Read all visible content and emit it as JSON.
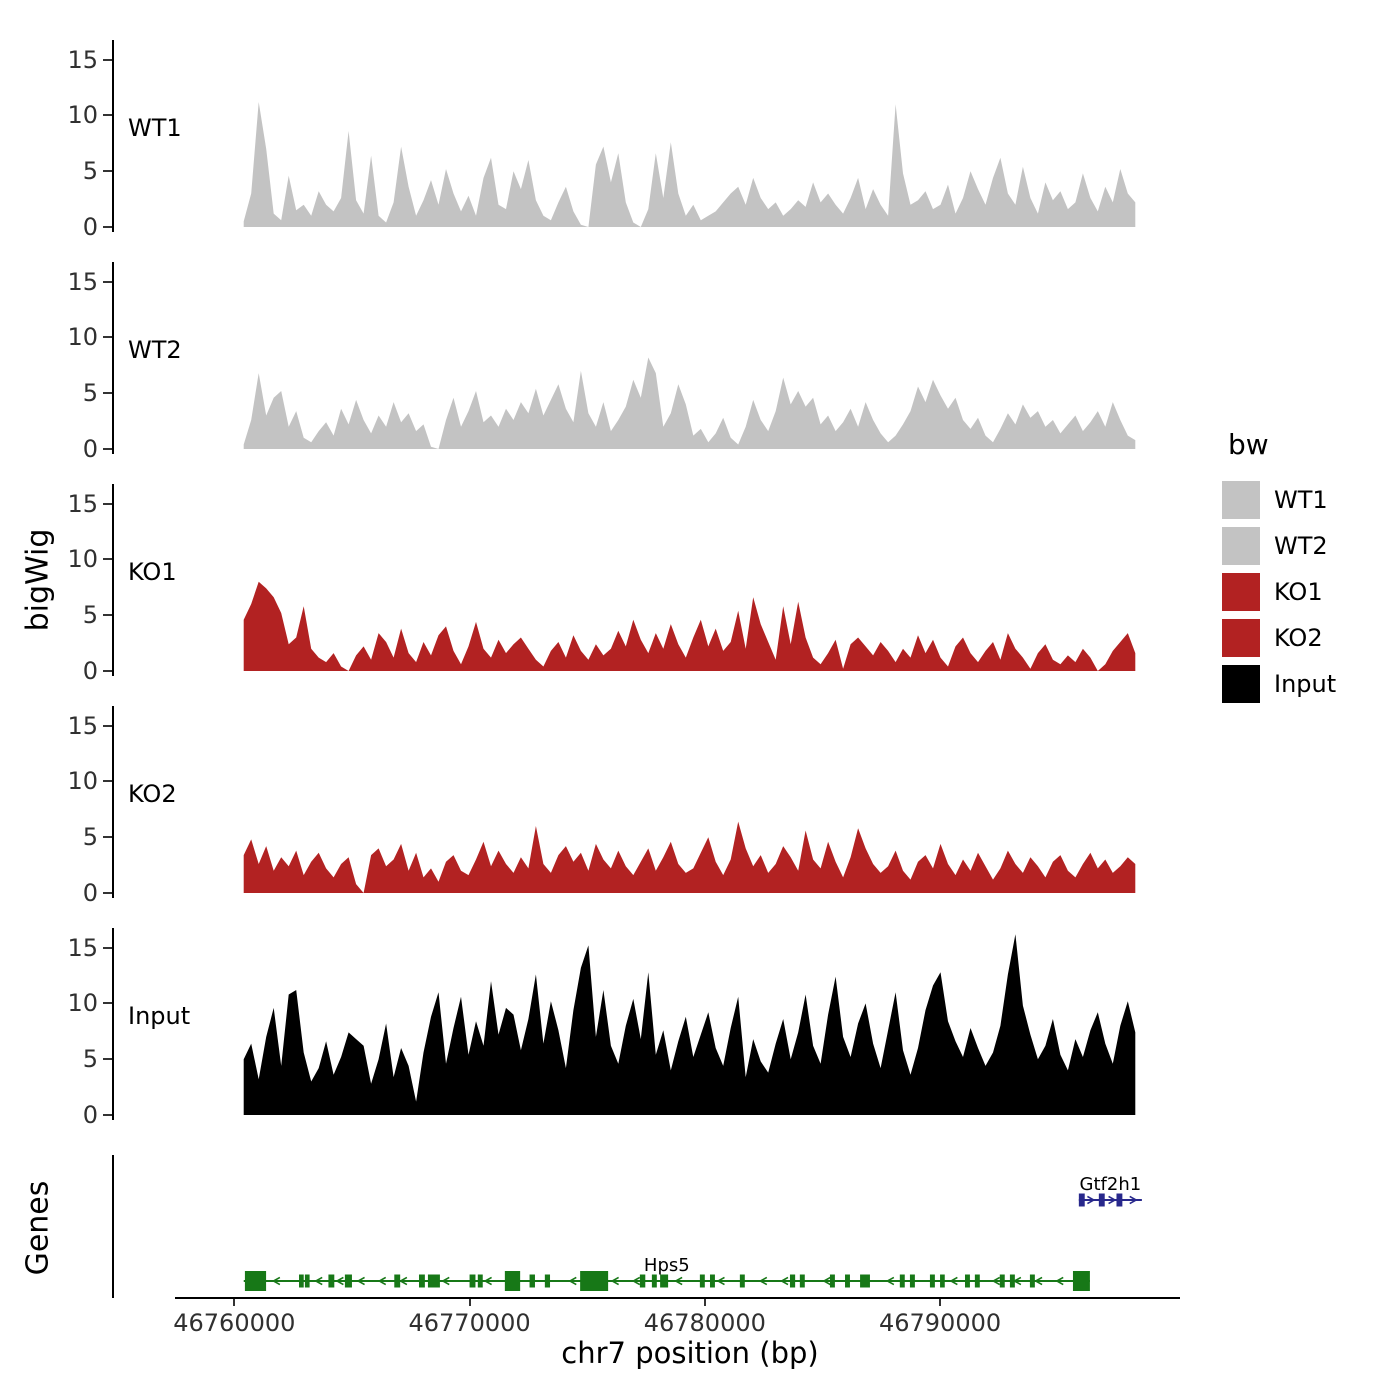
{
  "figure": {
    "y_axis_title": "bigWig",
    "genes_axis_title": "Genes",
    "x_axis_title": "chr7 position (bp)"
  },
  "legend": {
    "title": "bw",
    "items": [
      {
        "label": "WT1",
        "color": "#c3c3c3"
      },
      {
        "label": "WT2",
        "color": "#c3c3c3"
      },
      {
        "label": "KO1",
        "color": "#b22222"
      },
      {
        "label": "KO2",
        "color": "#b22222"
      },
      {
        "label": "Input",
        "color": "#000000"
      }
    ]
  },
  "chart_data": {
    "type": "area",
    "title": "",
    "xlabel": "chr7 position (bp)",
    "ylabel": "bigWig",
    "x_domain": [
      46754800,
      46800200
    ],
    "x_ticks": [
      {
        "value": 46760000,
        "label": "46760000"
      },
      {
        "value": 46770000,
        "label": "46770000"
      },
      {
        "value": 46780000,
        "label": "46780000"
      },
      {
        "value": 46790000,
        "label": "46790000"
      }
    ],
    "y_ticks": [
      15,
      10,
      5,
      0
    ],
    "ylim": [
      0,
      16.6
    ],
    "grid": false,
    "legend_position": "right",
    "signal_x_range": [
      46760400,
      46798300
    ],
    "tracks": [
      {
        "name": "WT1",
        "color": "#c3c3c3",
        "values": [
          0.5,
          3.0,
          11.2,
          7.0,
          1.2,
          0.6,
          4.6,
          1.5,
          2.0,
          1.0,
          3.2,
          2.0,
          1.4,
          2.6,
          8.6,
          2.4,
          1.2,
          6.4,
          1.0,
          0.4,
          2.2,
          7.2,
          3.6,
          1.0,
          2.4,
          4.2,
          2.0,
          5.2,
          3.0,
          1.4,
          2.8,
          1.0,
          4.4,
          6.2,
          2.0,
          1.6,
          5.0,
          3.4,
          6.0,
          2.4,
          1.0,
          0.6,
          2.2,
          3.6,
          1.4,
          0.2,
          0.0,
          5.6,
          7.2,
          4.0,
          6.6,
          2.2,
          0.4,
          0.0,
          1.6,
          6.6,
          2.6,
          7.6,
          3.0,
          1.0,
          2.0,
          0.6,
          1.0,
          1.4,
          2.2,
          3.0,
          3.6,
          2.0,
          4.4,
          2.6,
          1.6,
          2.2,
          1.0,
          1.6,
          2.4,
          1.8,
          4.0,
          2.2,
          3.0,
          2.0,
          1.2,
          2.6,
          4.4,
          1.6,
          3.4,
          2.0,
          1.0,
          11.0,
          4.8,
          2.0,
          2.4,
          3.2,
          1.6,
          2.0,
          3.8,
          1.2,
          2.6,
          5.0,
          3.4,
          2.0,
          4.4,
          6.2,
          3.0,
          2.0,
          5.4,
          2.6,
          1.2,
          4.0,
          2.4,
          3.2,
          1.6,
          2.2,
          4.8,
          2.6,
          1.4,
          3.6,
          2.2,
          5.2,
          3.0,
          2.2
        ]
      },
      {
        "name": "WT2",
        "color": "#c3c3c3",
        "values": [
          0.4,
          2.6,
          6.8,
          3.0,
          4.6,
          5.2,
          2.0,
          3.4,
          1.0,
          0.6,
          1.6,
          2.4,
          1.2,
          3.6,
          2.2,
          4.4,
          2.6,
          1.4,
          3.0,
          2.0,
          4.2,
          2.4,
          3.2,
          1.6,
          2.2,
          0.2,
          0.0,
          2.6,
          4.6,
          2.0,
          3.4,
          5.2,
          2.4,
          3.0,
          2.0,
          3.6,
          2.6,
          4.2,
          3.2,
          5.4,
          3.0,
          4.4,
          5.8,
          3.6,
          2.4,
          7.0,
          3.2,
          2.0,
          4.2,
          1.6,
          2.6,
          3.8,
          6.2,
          4.6,
          8.2,
          6.8,
          2.0,
          3.2,
          5.8,
          4.0,
          1.2,
          1.8,
          0.6,
          1.4,
          2.8,
          1.0,
          0.4,
          2.0,
          4.4,
          2.6,
          1.6,
          3.4,
          6.4,
          4.0,
          5.2,
          3.8,
          4.6,
          2.2,
          3.0,
          1.6,
          2.4,
          3.6,
          2.0,
          4.2,
          2.6,
          1.4,
          0.6,
          1.2,
          2.2,
          3.4,
          5.6,
          4.2,
          6.2,
          4.8,
          3.6,
          4.6,
          2.6,
          1.8,
          2.8,
          1.2,
          0.6,
          1.8,
          3.2,
          2.2,
          4.0,
          2.8,
          3.4,
          2.0,
          2.6,
          1.4,
          2.2,
          3.0,
          1.6,
          2.4,
          3.4,
          2.0,
          4.2,
          2.6,
          1.2,
          0.8
        ]
      },
      {
        "name": "KO1",
        "color": "#b22222",
        "values": [
          4.6,
          6.0,
          8.0,
          7.4,
          6.6,
          5.2,
          2.4,
          3.0,
          5.8,
          2.0,
          1.2,
          0.8,
          1.6,
          0.4,
          0.0,
          1.4,
          2.2,
          1.0,
          3.4,
          2.6,
          1.2,
          3.8,
          1.6,
          0.8,
          2.6,
          1.4,
          3.2,
          4.0,
          1.8,
          0.6,
          2.2,
          4.4,
          2.0,
          1.2,
          2.8,
          1.6,
          2.4,
          3.0,
          2.0,
          1.0,
          0.4,
          1.8,
          2.6,
          1.2,
          3.2,
          1.8,
          1.0,
          2.4,
          1.4,
          2.0,
          3.6,
          2.2,
          4.6,
          2.8,
          1.6,
          3.4,
          2.0,
          4.2,
          2.4,
          1.2,
          3.0,
          4.6,
          2.2,
          3.8,
          1.8,
          2.6,
          5.4,
          2.0,
          6.6,
          4.2,
          2.6,
          1.0,
          5.8,
          2.4,
          6.2,
          3.0,
          1.2,
          0.6,
          1.6,
          2.8,
          0.2,
          2.4,
          3.0,
          2.2,
          1.4,
          2.6,
          1.8,
          0.8,
          2.0,
          1.2,
          3.2,
          1.6,
          2.8,
          1.2,
          0.4,
          2.2,
          3.0,
          1.6,
          0.8,
          1.8,
          2.6,
          1.0,
          3.4,
          2.0,
          1.2,
          0.2,
          1.6,
          2.4,
          1.0,
          0.6,
          1.4,
          0.8,
          2.0,
          1.2,
          0.0,
          0.6,
          1.8,
          2.6,
          3.4,
          1.6
        ]
      },
      {
        "name": "KO2",
        "color": "#b22222",
        "values": [
          3.4,
          4.8,
          2.6,
          4.2,
          2.0,
          3.2,
          2.4,
          3.8,
          1.6,
          2.8,
          3.6,
          2.2,
          1.4,
          2.6,
          3.2,
          0.8,
          0.0,
          3.4,
          4.0,
          2.4,
          3.0,
          4.4,
          2.0,
          3.6,
          1.4,
          2.2,
          1.0,
          2.8,
          3.4,
          2.0,
          1.6,
          3.0,
          4.6,
          2.4,
          3.8,
          2.6,
          1.8,
          3.2,
          2.2,
          6.0,
          2.6,
          1.8,
          3.4,
          4.2,
          2.8,
          3.6,
          2.0,
          4.4,
          3.0,
          2.2,
          3.8,
          2.4,
          1.6,
          2.8,
          4.0,
          2.0,
          3.2,
          4.6,
          2.6,
          1.8,
          2.2,
          3.6,
          5.0,
          2.8,
          1.6,
          3.0,
          6.4,
          4.0,
          2.4,
          3.4,
          1.8,
          2.6,
          4.2,
          3.2,
          2.0,
          5.6,
          3.0,
          2.2,
          4.6,
          2.8,
          1.4,
          3.2,
          5.8,
          4.0,
          2.6,
          1.8,
          2.4,
          3.8,
          2.0,
          1.2,
          2.8,
          3.4,
          2.2,
          4.4,
          2.6,
          1.6,
          3.0,
          2.0,
          3.6,
          2.4,
          1.2,
          2.2,
          3.8,
          2.6,
          1.8,
          3.2,
          2.4,
          1.4,
          2.8,
          3.4,
          2.0,
          1.4,
          2.6,
          3.6,
          2.2,
          3.0,
          1.8,
          2.4,
          3.2,
          2.6
        ]
      },
      {
        "name": "Input",
        "color": "#000000",
        "values": [
          5.0,
          6.4,
          3.2,
          7.0,
          9.6,
          4.4,
          10.8,
          11.2,
          5.6,
          3.0,
          4.2,
          6.6,
          3.6,
          5.2,
          7.4,
          6.8,
          6.2,
          2.8,
          5.0,
          8.2,
          3.4,
          6.0,
          4.4,
          1.2,
          5.6,
          8.8,
          11.0,
          4.6,
          7.8,
          10.6,
          5.4,
          8.4,
          6.2,
          12.0,
          7.2,
          9.6,
          9.0,
          5.8,
          8.6,
          12.6,
          6.4,
          10.2,
          7.6,
          4.2,
          9.4,
          13.2,
          15.2,
          7.0,
          11.2,
          6.2,
          4.6,
          8.0,
          10.4,
          6.8,
          12.8,
          5.4,
          7.6,
          4.0,
          6.6,
          8.8,
          5.2,
          7.2,
          9.2,
          6.0,
          4.4,
          7.8,
          10.6,
          3.4,
          6.8,
          4.8,
          3.8,
          6.4,
          8.6,
          5.0,
          7.4,
          10.8,
          6.2,
          4.6,
          9.0,
          12.4,
          7.0,
          5.2,
          8.2,
          10.0,
          6.4,
          4.2,
          7.6,
          11.0,
          5.8,
          3.6,
          6.0,
          9.4,
          11.6,
          12.8,
          8.4,
          6.6,
          5.2,
          7.8,
          6.0,
          4.4,
          5.6,
          8.0,
          12.6,
          16.2,
          9.8,
          7.2,
          5.0,
          6.2,
          8.6,
          5.4,
          4.0,
          6.8,
          5.2,
          7.6,
          9.2,
          6.4,
          4.6,
          8.0,
          10.2,
          7.4
        ]
      }
    ],
    "genes": [
      {
        "name": "Gtf2h1",
        "color": "#28288c",
        "strand": "+",
        "start": 46795900,
        "end": 46798580,
        "exons": [
          [
            46795900,
            46796150,
            0
          ],
          [
            46796750,
            46797000,
            0
          ],
          [
            46797500,
            46797750,
            0
          ]
        ]
      },
      {
        "name": "Hps5",
        "color": "#177817",
        "strand": "-",
        "start": 46760400,
        "end": 46796370,
        "exons": [
          [
            46760450,
            46761350,
            1
          ],
          [
            46762750,
            46762950,
            0
          ],
          [
            46763000,
            46763200,
            0
          ],
          [
            46764000,
            46764250,
            0
          ],
          [
            46764700,
            46765000,
            0
          ],
          [
            46766800,
            46767050,
            0
          ],
          [
            46767850,
            46768100,
            0
          ],
          [
            46768230,
            46768740,
            0
          ],
          [
            46770000,
            46770250,
            0
          ],
          [
            46770350,
            46770560,
            0
          ],
          [
            46771500,
            46772150,
            1
          ],
          [
            46772550,
            46772780,
            0
          ],
          [
            46773200,
            46773420,
            0
          ],
          [
            46774700,
            46775890,
            1
          ],
          [
            46777240,
            46777470,
            0
          ],
          [
            46777750,
            46777960,
            0
          ],
          [
            46778100,
            46778440,
            0
          ],
          [
            46779790,
            46780000,
            0
          ],
          [
            46780220,
            46780430,
            0
          ],
          [
            46781490,
            46781700,
            0
          ],
          [
            46783620,
            46783840,
            0
          ],
          [
            46784040,
            46784250,
            0
          ],
          [
            46785320,
            46785530,
            0
          ],
          [
            46785960,
            46786170,
            0
          ],
          [
            46786600,
            46787020,
            0
          ],
          [
            46788290,
            46788500,
            0
          ],
          [
            46788720,
            46788930,
            0
          ],
          [
            46789570,
            46789780,
            0
          ],
          [
            46790000,
            46790200,
            0
          ],
          [
            46791060,
            46791270,
            0
          ],
          [
            46791480,
            46791690,
            0
          ],
          [
            46792540,
            46792750,
            0
          ],
          [
            46792970,
            46793180,
            0
          ],
          [
            46793820,
            46794030,
            0
          ],
          [
            46795650,
            46796370,
            1
          ]
        ]
      }
    ]
  }
}
